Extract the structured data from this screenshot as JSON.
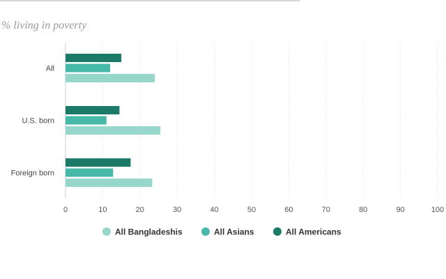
{
  "chart_data": {
    "type": "bar",
    "orientation": "horizontal",
    "subtitle": "% living in poverty",
    "categories": [
      "All",
      "U.S. born",
      "Foreign born"
    ],
    "series": [
      {
        "name": "All Americans",
        "color": "#1b7a68",
        "values": [
          15,
          14.5,
          17.5
        ]
      },
      {
        "name": "All Asians",
        "color": "#47b9a8",
        "values": [
          12,
          11,
          12.8
        ]
      },
      {
        "name": "All Bangladeshis",
        "color": "#96d6cb",
        "values": [
          24,
          25.5,
          23.3
        ]
      }
    ],
    "legend_order": [
      2,
      1,
      0
    ],
    "xlim": [
      0,
      100
    ],
    "x_ticks": [
      "0",
      "10",
      "20",
      "30",
      "40",
      "50",
      "60",
      "70",
      "80",
      "90",
      "100"
    ],
    "grid": true,
    "legend_position": "bottom"
  }
}
